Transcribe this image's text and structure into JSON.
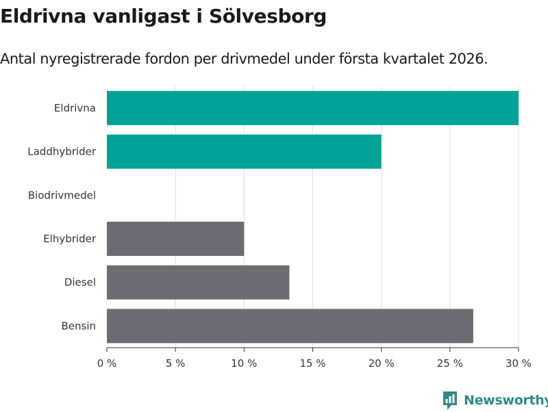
{
  "header": {
    "title": "Eldrivna vanligast i Sölvesborg",
    "subtitle": "Antal nyregistrerade fordon per drivmedel under första kvartalet 2026."
  },
  "chart_data": {
    "type": "bar",
    "orientation": "horizontal",
    "categories": [
      "Eldrivna",
      "Laddhybrider",
      "Biodrivmedel",
      "Elhybrider",
      "Diesel",
      "Bensin"
    ],
    "values": [
      30,
      20,
      0,
      10,
      13.3,
      26.7
    ],
    "value_unit": "%",
    "bar_colors": [
      "#00a398",
      "#00a398",
      "#00a398",
      "#6d6c73",
      "#6d6c73",
      "#6d6c73"
    ],
    "xlim": [
      0,
      30
    ],
    "x_ticks": [
      0,
      5,
      10,
      15,
      20,
      25,
      30
    ],
    "x_tick_labels": [
      "0 %",
      "5 %",
      "10 %",
      "15 %",
      "20 %",
      "25 %",
      "30 %"
    ],
    "xlabel": "",
    "ylabel": "",
    "grid": "vertical",
    "gridline_color": "#dddddd",
    "axis_color": "#333333"
  },
  "brand": {
    "name": "Newsworthy",
    "icon": "newsworthy-logo-icon",
    "color": "#2e8b87"
  }
}
